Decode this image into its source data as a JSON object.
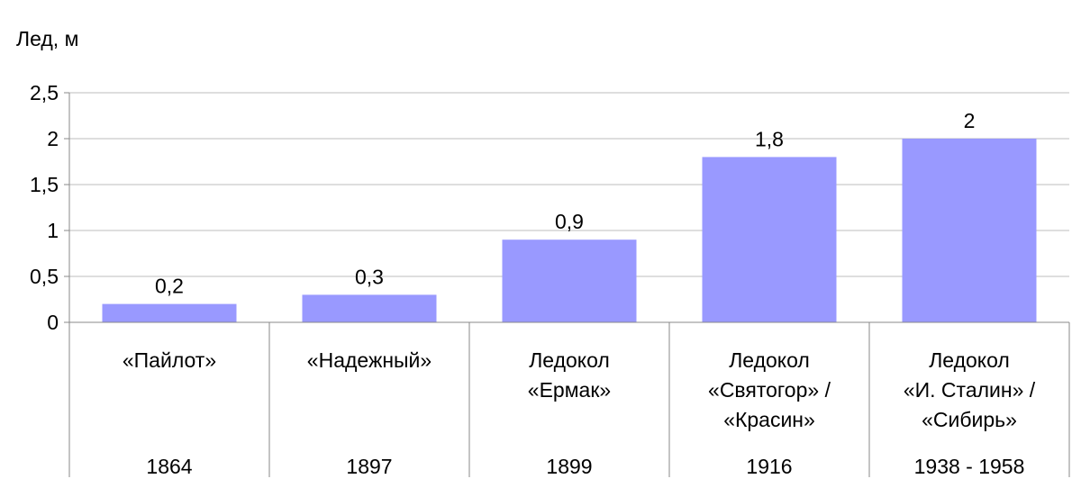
{
  "chart_data": {
    "type": "bar",
    "ylabel": "Лед, м",
    "ylim": [
      0,
      2.5
    ],
    "yticks": [
      "0",
      "0,5",
      "1",
      "1,5",
      "2",
      "2,5"
    ],
    "grid": true,
    "bar_color": "#9999ff",
    "categories": [
      {
        "name_lines": [
          "«Пайлот»"
        ],
        "year": "1864"
      },
      {
        "name_lines": [
          "«Надежный»"
        ],
        "year": "1897"
      },
      {
        "name_lines": [
          "Ледокол",
          "«Ермак»"
        ],
        "year": "1899"
      },
      {
        "name_lines": [
          "Ледокол",
          "«Святогор» /",
          "«Красин»"
        ],
        "year": "1916"
      },
      {
        "name_lines": [
          "Ледокол",
          "«И. Сталин» /",
          "«Сибирь»"
        ],
        "year": "1938 - 1958"
      }
    ],
    "values": [
      0.2,
      0.3,
      0.9,
      1.8,
      2
    ],
    "data_labels": [
      "0,2",
      "0,3",
      "0,9",
      "1,8",
      "2"
    ]
  }
}
